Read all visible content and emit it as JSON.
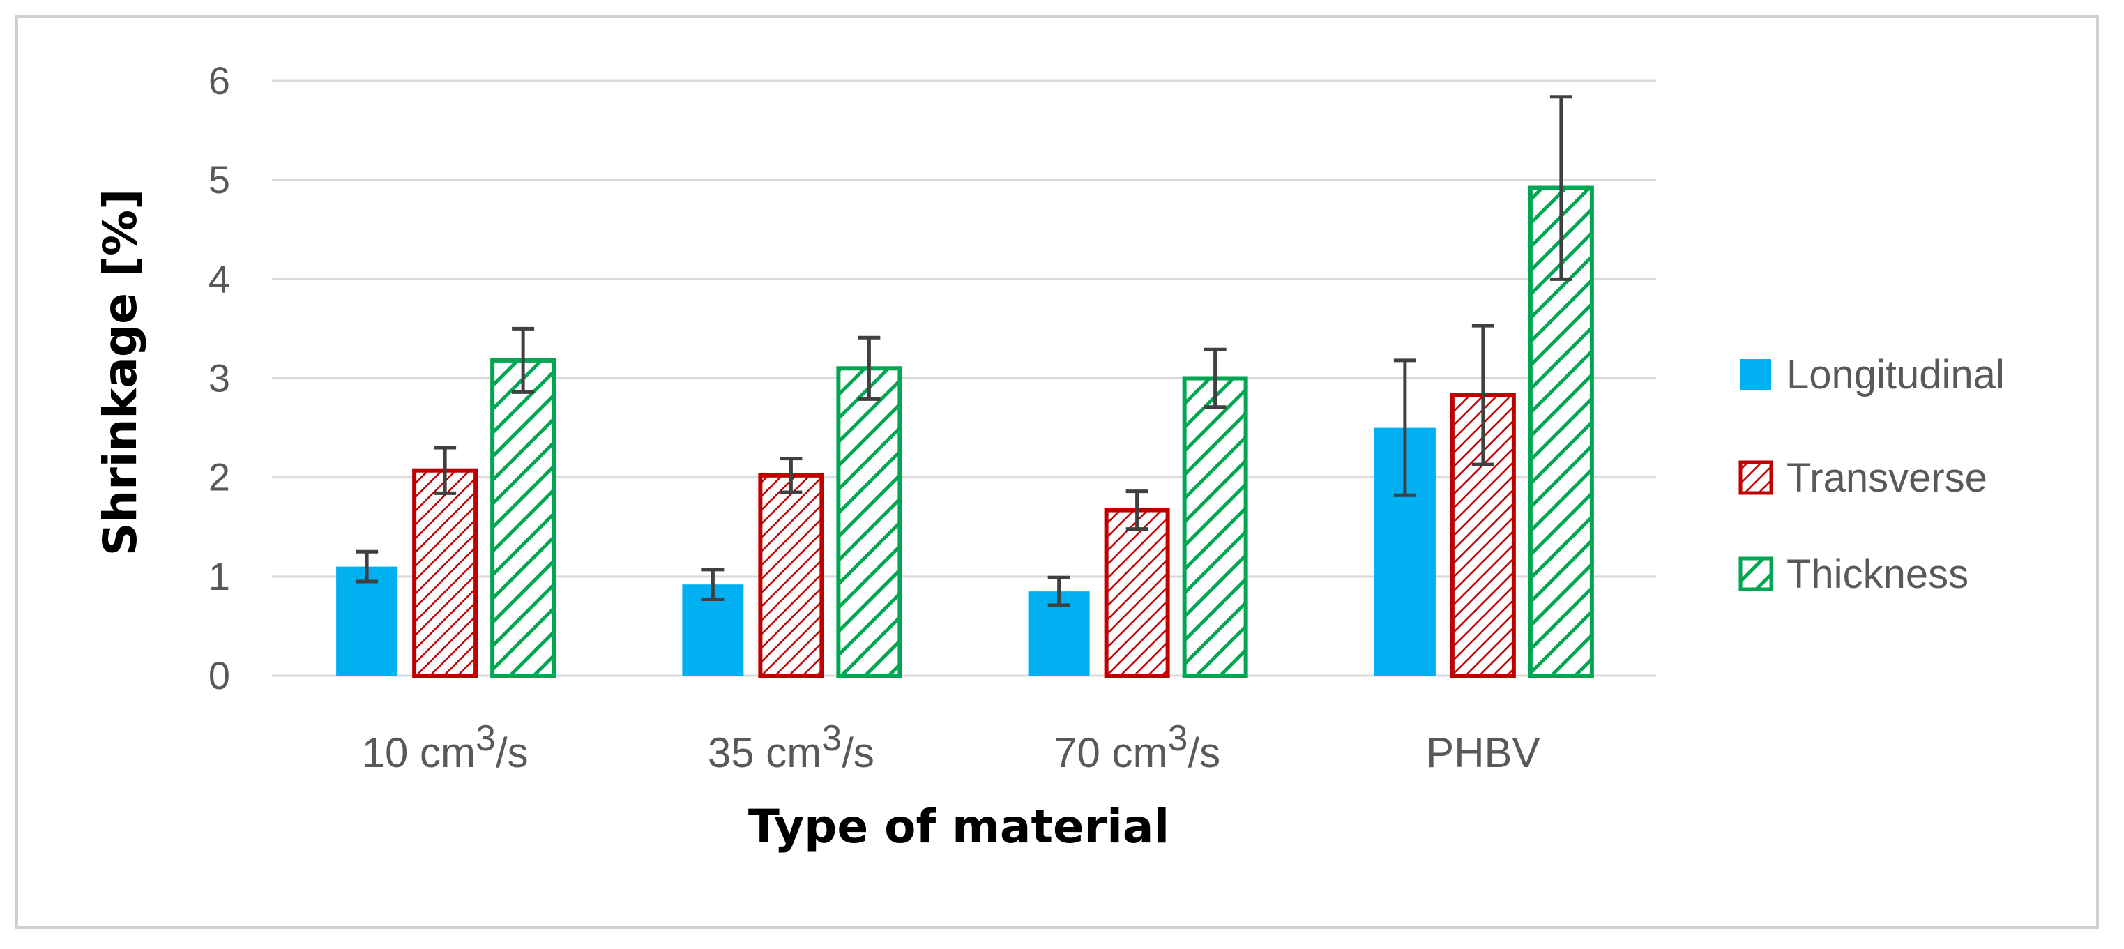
{
  "chart_data": {
    "type": "bar",
    "title": "",
    "xlabel": "Type of material",
    "ylabel": "Shrinkage [%]",
    "ylim": [
      0,
      6
    ],
    "yticks": [
      0,
      1,
      2,
      3,
      4,
      5,
      6
    ],
    "grid": true,
    "legend_position": "right",
    "categories": [
      {
        "base": "10 cm",
        "sup": "3",
        "suffix": "/s"
      },
      {
        "base": "35 cm",
        "sup": "3",
        "suffix": "/s"
      },
      {
        "base": "70 cm",
        "sup": "3",
        "suffix": "/s"
      },
      {
        "base": "PHBV",
        "sup": "",
        "suffix": ""
      }
    ],
    "series": [
      {
        "name": "Longitudinal",
        "pattern": "solid",
        "fill": "#00b0f0",
        "stroke": "#00b0f0",
        "values": [
          1.1,
          0.92,
          0.85,
          2.5
        ],
        "errors": [
          0.15,
          0.15,
          0.14,
          0.68
        ]
      },
      {
        "name": "Transverse",
        "pattern": "dense-hatch",
        "fill": "#c00000",
        "stroke": "#c00000",
        "values": [
          2.07,
          2.02,
          1.67,
          2.83
        ],
        "errors": [
          0.23,
          0.17,
          0.19,
          0.7
        ]
      },
      {
        "name": "Thickness",
        "pattern": "wide-hatch",
        "fill": "#00a651",
        "stroke": "#00a651",
        "values": [
          3.18,
          3.1,
          3.0,
          4.92
        ],
        "errors": [
          0.32,
          0.31,
          0.29,
          0.92
        ]
      }
    ]
  }
}
